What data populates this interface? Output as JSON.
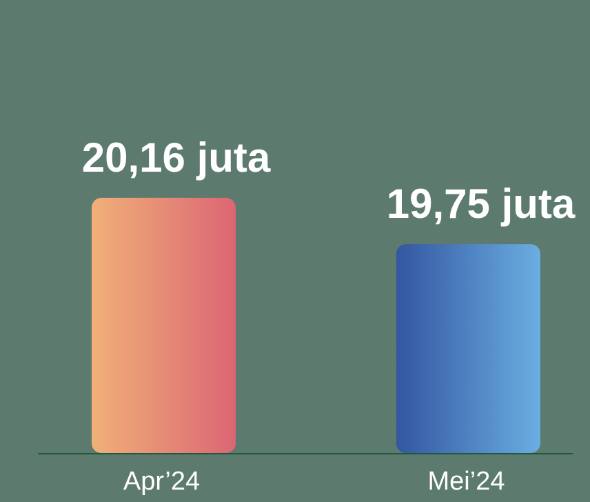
{
  "chart_data": {
    "type": "bar",
    "categories": [
      "Apr’24",
      "Mei’24"
    ],
    "values": [
      20.16,
      19.75
    ],
    "value_labels": [
      "20,16 juta",
      "19,75 juta"
    ],
    "colors": [
      [
        "#f0b078",
        "#dc6674"
      ],
      [
        "#3356a0",
        "#6aaee2"
      ]
    ],
    "ylim": [
      17.9,
      21.9
    ],
    "grid": false
  }
}
